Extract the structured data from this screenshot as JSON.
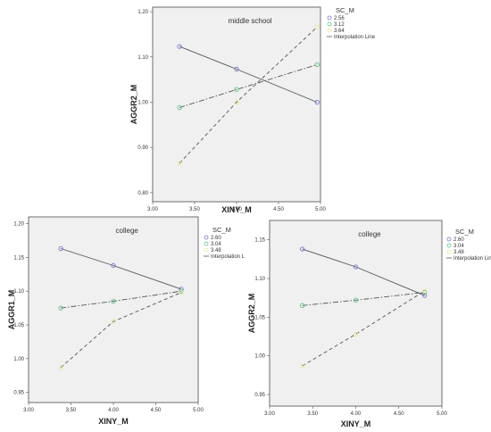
{
  "chart_data": [
    {
      "type": "line",
      "annotation": "middle school",
      "xlabel": "XINY_M",
      "ylabel": "AGGR2_M",
      "xlim": [
        3.0,
        5.0
      ],
      "ylim": [
        0.78,
        1.21
      ],
      "xticks": [
        "3.00",
        "3.50",
        "4.00",
        "4.50",
        "5.00"
      ],
      "yticks": [
        "0.80",
        "0.90",
        "1.00",
        "1.10",
        "1.20"
      ],
      "xtick_values": [
        3.0,
        3.5,
        4.0,
        4.5,
        5.0
      ],
      "ytick_values": [
        0.8,
        0.9,
        1.0,
        1.1,
        1.2
      ],
      "legend": {
        "title": "SC_M",
        "entries": [
          "2.56",
          "3.12",
          "3.64"
        ],
        "line_label": "Interpolation Line",
        "placement": "outside-top-right"
      },
      "series": [
        {
          "name": "2.56",
          "color": "#7a78c8",
          "line": "solid",
          "x": [
            3.32,
            4.0,
            4.96
          ],
          "y": [
            1.123,
            1.073,
            1.0
          ]
        },
        {
          "name": "3.12",
          "color": "#62c08f",
          "line": "dashdot",
          "x": [
            3.32,
            4.0,
            4.96
          ],
          "y": [
            0.988,
            1.028,
            1.083
          ]
        },
        {
          "name": "3.64",
          "color": "#e6e6a0",
          "line": "dashed",
          "x": [
            3.32,
            4.0,
            4.96
          ],
          "y": [
            0.865,
            1.0,
            1.166
          ]
        }
      ]
    },
    {
      "type": "line",
      "annotation": "college",
      "xlabel": "XINY_M",
      "ylabel": "AGGR1_M",
      "xlim": [
        3.0,
        5.0
      ],
      "ylim": [
        0.935,
        1.21
      ],
      "xticks": [
        "3.00",
        "3.50",
        "4.00",
        "4.50",
        "5.00"
      ],
      "yticks": [
        "0.95",
        "1.00",
        "1.05",
        "1.10",
        "1.15",
        "1.20"
      ],
      "xtick_values": [
        3.0,
        3.5,
        4.0,
        4.5,
        5.0
      ],
      "ytick_values": [
        0.95,
        1.0,
        1.05,
        1.1,
        1.15,
        1.2
      ],
      "legend": {
        "title": "SC_M",
        "entries": [
          "2.60",
          "3.04",
          "3.48"
        ],
        "line_label": "Interpolation L",
        "placement": "outside-top-right"
      },
      "series": [
        {
          "name": "2.60",
          "color": "#7a78c8",
          "line": "solid",
          "x": [
            3.38,
            4.0,
            4.8
          ],
          "y": [
            1.163,
            1.138,
            1.103
          ]
        },
        {
          "name": "3.04",
          "color": "#62c08f",
          "line": "dashdot",
          "x": [
            3.38,
            4.0,
            4.8
          ],
          "y": [
            1.075,
            1.085,
            1.1
          ]
        },
        {
          "name": "3.48",
          "color": "#e6e6a0",
          "line": "dashed",
          "x": [
            3.38,
            4.0,
            4.8
          ],
          "y": [
            0.987,
            1.055,
            1.098
          ]
        }
      ]
    },
    {
      "type": "line",
      "annotation": "college",
      "xlabel": "XINY_M",
      "ylabel": "AGGR2_M",
      "xlim": [
        3.0,
        5.0
      ],
      "ylim": [
        0.935,
        1.175
      ],
      "xticks": [
        "3.00",
        "3.50",
        "4.00",
        "4.50",
        "5.00"
      ],
      "yticks": [
        "0.95",
        "1.00",
        "1.05",
        "1.10",
        "1.15"
      ],
      "xtick_values": [
        3.0,
        3.5,
        4.0,
        4.5,
        5.0
      ],
      "ytick_values": [
        0.95,
        1.0,
        1.05,
        1.1,
        1.15
      ],
      "legend": {
        "title": "SC_M",
        "entries": [
          "2.60",
          "3.04",
          "3.48"
        ],
        "line_label": "Interpolation Line",
        "placement": "outside-top-right"
      },
      "series": [
        {
          "name": "2.60",
          "color": "#7a78c8",
          "line": "solid",
          "x": [
            3.38,
            4.0,
            4.8
          ],
          "y": [
            1.138,
            1.115,
            1.078
          ]
        },
        {
          "name": "3.04",
          "color": "#62c08f",
          "line": "dashdot",
          "x": [
            3.38,
            4.0,
            4.8
          ],
          "y": [
            1.065,
            1.072,
            1.082
          ]
        },
        {
          "name": "3.48",
          "color": "#e6e6a0",
          "line": "dashed",
          "x": [
            3.38,
            4.0,
            4.8
          ],
          "y": [
            0.987,
            1.028,
            1.084
          ]
        }
      ]
    }
  ]
}
